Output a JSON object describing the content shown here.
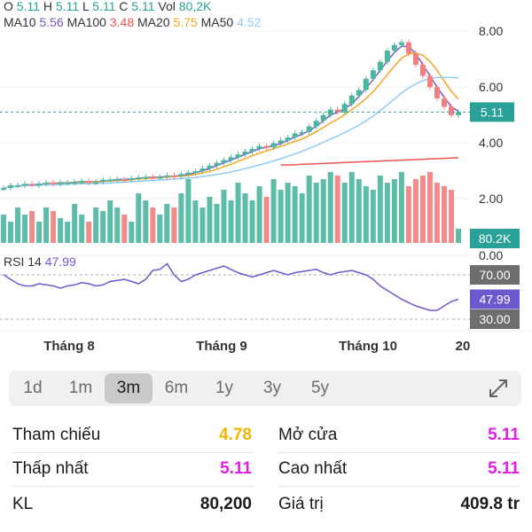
{
  "ohlc": {
    "o_label": "O",
    "o_value": "5.11",
    "h_label": "H",
    "h_value": "5.11",
    "l_label": "L",
    "l_value": "5.11",
    "c_label": "C",
    "c_value": "5.11",
    "vol_label": "Vol",
    "vol_value": "80,2K"
  },
  "ma_legend": [
    {
      "label": "MA10",
      "value": "5.56",
      "color": "#7e57c2"
    },
    {
      "label": "MA100",
      "value": "3.48",
      "color": "#ef5350"
    },
    {
      "label": "MA20",
      "value": "5.75",
      "color": "#f5a623"
    },
    {
      "label": "MA50",
      "value": "4.52",
      "color": "#90caf9"
    }
  ],
  "price_axis": [
    "8.00",
    "6.00",
    "4.00",
    "2.00",
    "0.00"
  ],
  "last_price_tag": "5.11",
  "volume_tag": "80.2K",
  "rsi": {
    "label": "RSI 14",
    "value": "47.99",
    "levels": [
      "70.00",
      "30.00"
    ]
  },
  "x_axis": [
    "Tháng 8",
    "Tháng 9",
    "Tháng 10",
    "20"
  ],
  "timeframes": [
    "1d",
    "1m",
    "3m",
    "6m",
    "1y",
    "3y",
    "5y"
  ],
  "active_timeframe": "3m",
  "stats": [
    {
      "left_label": "Tham chiếu",
      "left_value": "4.78",
      "left_color": "#f0b400",
      "right_label": "Mở cửa",
      "right_value": "5.11",
      "right_color": "#e020e0"
    },
    {
      "left_label": "Thấp nhất",
      "left_value": "5.11",
      "left_color": "#e020e0",
      "right_label": "Cao nhất",
      "right_value": "5.11",
      "right_color": "#e020e0"
    },
    {
      "left_label": "KL",
      "left_value": "80,200",
      "left_color": "#1a1a1a",
      "right_label": "Giá trị",
      "right_value": "409.8 tr",
      "right_color": "#1a1a1a"
    }
  ],
  "colors": {
    "up": "#4db6a0",
    "down": "#f08080",
    "rsi_line": "#6a5acd",
    "price_tag": "#2aa198",
    "volume_tag": "#2aa198",
    "rsi_tag": "#6a5acd",
    "level_tag": "#6e6e6e"
  },
  "chart_data": {
    "type": "candlestick",
    "y_axis_range": [
      0,
      8
    ],
    "rsi_range": [
      0,
      100
    ],
    "last_close": 5.11,
    "series": [
      {
        "name": "MA10",
        "last": 5.56
      },
      {
        "name": "MA100",
        "last": 3.48
      },
      {
        "name": "MA20",
        "last": 5.75
      },
      {
        "name": "MA50",
        "last": 4.52
      }
    ]
  }
}
